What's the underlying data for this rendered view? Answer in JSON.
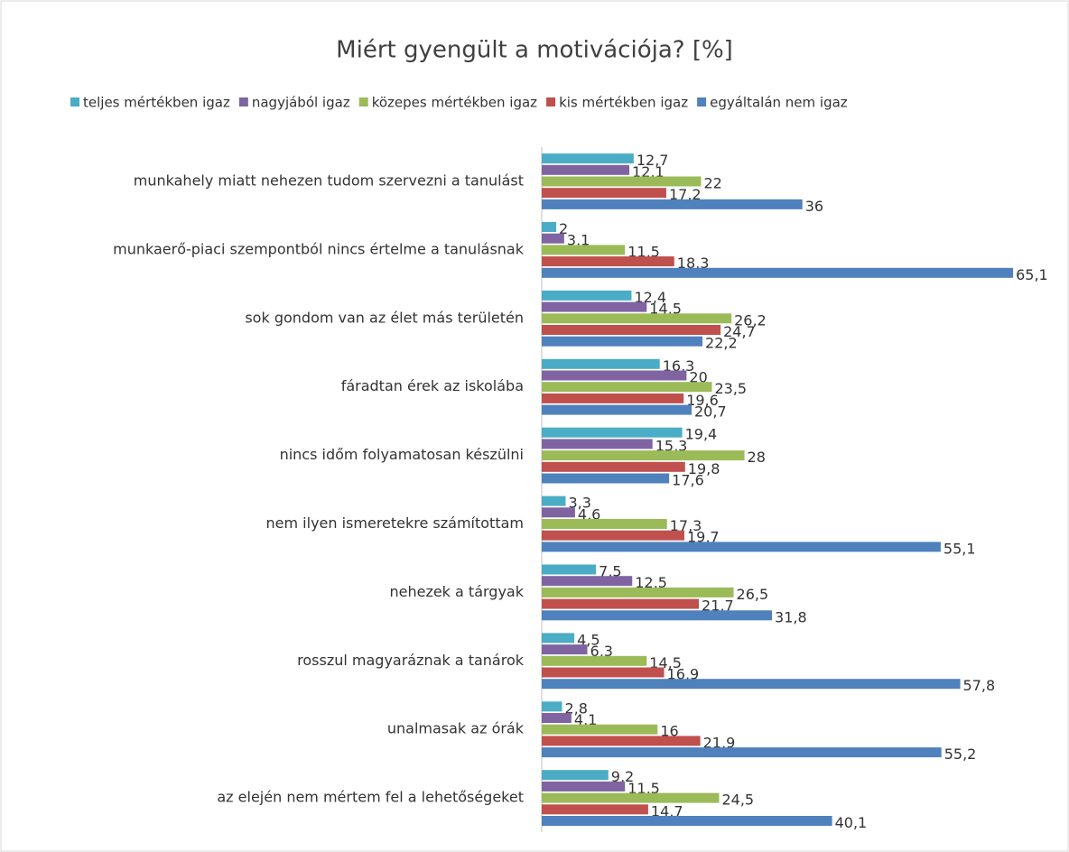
{
  "chart_data": {
    "type": "bar",
    "orientation": "horizontal",
    "title": "Miért gyengült a motivációja? [%]",
    "categories": [
      "munkahely miatt nehezen tudom szervezni a tanulást",
      "munkaerő-piaci szempontból nincs értelme a tanulásnak",
      "sok gondom van az élet más területén",
      "fáradtan érek az iskolába",
      "nincs időm folyamatosan készülni",
      "nem ilyen ismeretekre számítottam",
      "nehezek a tárgyak",
      "rosszul magyaráznak a tanárok",
      "unalmasak az órák",
      "az elején nem mértem fel a lehetőségeket"
    ],
    "series": [
      {
        "name": "teljes mértékben igaz",
        "color": "#4bacc6",
        "values": [
          12.7,
          2,
          12.4,
          16.3,
          19.4,
          3.3,
          7.5,
          4.5,
          2.8,
          9.2
        ],
        "value_labels": [
          "12,7",
          "2",
          "12,4",
          "16,3",
          "19,4",
          "3,3",
          "7,5",
          "4,5",
          "2,8",
          "9,2"
        ]
      },
      {
        "name": "nagyjából igaz",
        "color": "#8064a2",
        "values": [
          12.1,
          3.1,
          14.5,
          20,
          15.3,
          4.6,
          12.5,
          6.3,
          4.1,
          11.5
        ],
        "value_labels": [
          "12,1",
          "3,1",
          "14,5",
          "20",
          "15,3",
          "4,6",
          "12,5",
          "6,3",
          "4,1",
          "11,5"
        ]
      },
      {
        "name": "közepes mértékben igaz",
        "color": "#9bbb59",
        "values": [
          22,
          11.5,
          26.2,
          23.5,
          28,
          17.3,
          26.5,
          14.5,
          16,
          24.5
        ],
        "value_labels": [
          "22",
          "11,5",
          "26,2",
          "23,5",
          "28",
          "17,3",
          "26,5",
          "14,5",
          "16",
          "24,5"
        ]
      },
      {
        "name": "kis mértékben igaz",
        "color": "#c0504d",
        "values": [
          17.2,
          18.3,
          24.7,
          19.6,
          19.8,
          19.7,
          21.7,
          16.9,
          21.9,
          14.7
        ],
        "value_labels": [
          "17,2",
          "18,3",
          "24,7",
          "19,6",
          "19,8",
          "19,7",
          "21,7",
          "16,9",
          "21,9",
          "14,7"
        ]
      },
      {
        "name": "egyáltalán nem igaz",
        "color": "#4f81bd",
        "values": [
          36,
          65.1,
          22.2,
          20.7,
          17.6,
          55.1,
          31.8,
          57.8,
          55.2,
          40.1
        ],
        "value_labels": [
          "36",
          "65,1",
          "22,2",
          "20,7",
          "17,6",
          "55,1",
          "31,8",
          "57,8",
          "55,2",
          "40,1"
        ]
      }
    ]
  }
}
